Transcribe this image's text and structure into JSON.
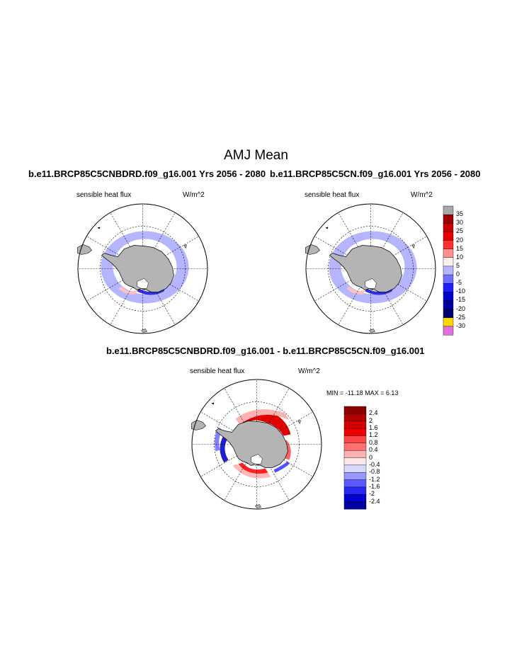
{
  "title": "AMJ Mean",
  "panels": {
    "left": {
      "title": "b.e11.BRCP85C5CNBDRD.f09_g16.001  Yrs 2056 - 2080",
      "variable": "sensible heat flux",
      "units": "W/m^2"
    },
    "right": {
      "title": "b.e11.BRCP85C5CN.f09_g16.001  Yrs 2056 - 2080",
      "variable": "sensible heat flux",
      "units": "W/m^2"
    },
    "diff": {
      "title": "b.e11.BRCP85C5CNBDRD.f09_g16.001 - b.e11.BRCP85C5CN.f09_g16.001",
      "variable": "sensible heat flux",
      "units": "W/m^2",
      "minmax": "MIN = -11.18 MAX =   6.13"
    }
  },
  "colorbar_top": {
    "labels": [
      "35",
      "30",
      "25",
      "20",
      "15",
      "10",
      "5",
      "0",
      "-5",
      "-10",
      "-15",
      "-20",
      "-25",
      "-30"
    ],
    "colors": [
      "#a8a8a8",
      "#a00000",
      "#c80000",
      "#e60000",
      "#ff3030",
      "#ff9090",
      "#fff0f0",
      "#b4b4ff",
      "#7070ff",
      "#1e1eff",
      "#0000c8",
      "#0000a0",
      "#000070",
      "#ffd700",
      "#e070e0"
    ]
  },
  "colorbar_diff": {
    "labels": [
      "2.4",
      "2",
      "1.6",
      "1.2",
      "0.8",
      "0.4",
      "0",
      "-0.4",
      "-0.8",
      "-1.2",
      "-1.6",
      "-2",
      "-2.4"
    ],
    "colors": [
      "#8b0000",
      "#b40000",
      "#d20000",
      "#f00000",
      "#ff4646",
      "#ff7070",
      "#ffb0b0",
      "#fce8e8",
      "#d8d8ff",
      "#9898ff",
      "#5a5aff",
      "#2828f0",
      "#0000d2",
      "#0000a0"
    ]
  }
}
